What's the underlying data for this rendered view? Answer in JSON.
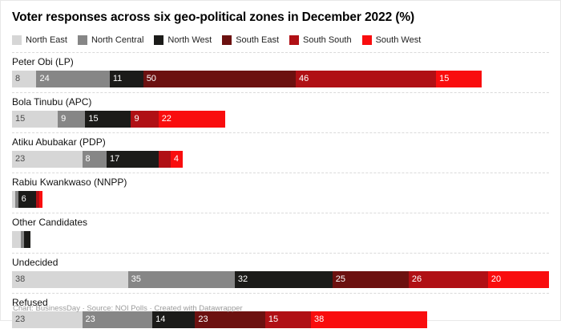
{
  "title": "Voter responses across six geo-political zones in December 2022 (%)",
  "footer": "Chart: BusinessDay · Source: NOI Polls · Created with Datawrapper",
  "colors": {
    "background": "#ffffff",
    "separator": "#dadada",
    "label_on_light": "#4d4d4d",
    "label_on_dark": "#ffffff",
    "footer_text": "#9b9b9b"
  },
  "chart_data": {
    "type": "bar",
    "stacked": true,
    "orientation": "horizontal",
    "unit": "%",
    "max_total": 176,
    "legend_position": "top",
    "grid": false,
    "series": [
      {
        "name": "North East",
        "color": "#d6d6d6",
        "light": true
      },
      {
        "name": "North Central",
        "color": "#868686",
        "light": false
      },
      {
        "name": "North West",
        "color": "#1b1b19",
        "light": false
      },
      {
        "name": "South East",
        "color": "#6c1110",
        "light": false
      },
      {
        "name": "South South",
        "color": "#b01015",
        "light": false
      },
      {
        "name": "South West",
        "color": "#f90d0e",
        "light": false
      }
    ],
    "rows": [
      {
        "label": "Peter Obi (LP)",
        "values": [
          8,
          24,
          11,
          50,
          46,
          15
        ],
        "seg_labels": [
          "8",
          "24",
          "11",
          "50",
          "46",
          "15"
        ]
      },
      {
        "label": "Bola Tinubu (APC)",
        "values": [
          15,
          9,
          15,
          0,
          9,
          22
        ],
        "seg_labels": [
          "15",
          "9",
          "15",
          "",
          "9",
          "22"
        ]
      },
      {
        "label": "Atiku Abubakar (PDP)",
        "values": [
          23,
          8,
          17,
          0,
          4,
          4
        ],
        "seg_labels": [
          "23",
          "8",
          "17",
          "",
          "",
          "4"
        ]
      },
      {
        "label": "Rabiu Kwankwaso (NNPP)",
        "values": [
          1,
          1,
          6,
          0,
          1,
          1
        ],
        "seg_labels": [
          "",
          "",
          "6",
          "",
          "",
          ""
        ]
      },
      {
        "label": "Other Candidates",
        "values": [
          3,
          1,
          2,
          0,
          0,
          0
        ],
        "seg_labels": [
          "",
          "",
          "",
          "",
          "",
          ""
        ]
      },
      {
        "label": "Undecided",
        "values": [
          38,
          35,
          32,
          25,
          26,
          20
        ],
        "seg_labels": [
          "38",
          "35",
          "32",
          "25",
          "26",
          "20"
        ]
      },
      {
        "label": "Refused",
        "values": [
          23,
          23,
          14,
          23,
          15,
          38
        ],
        "seg_labels": [
          "23",
          "23",
          "14",
          "23",
          "15",
          "38"
        ]
      }
    ]
  }
}
